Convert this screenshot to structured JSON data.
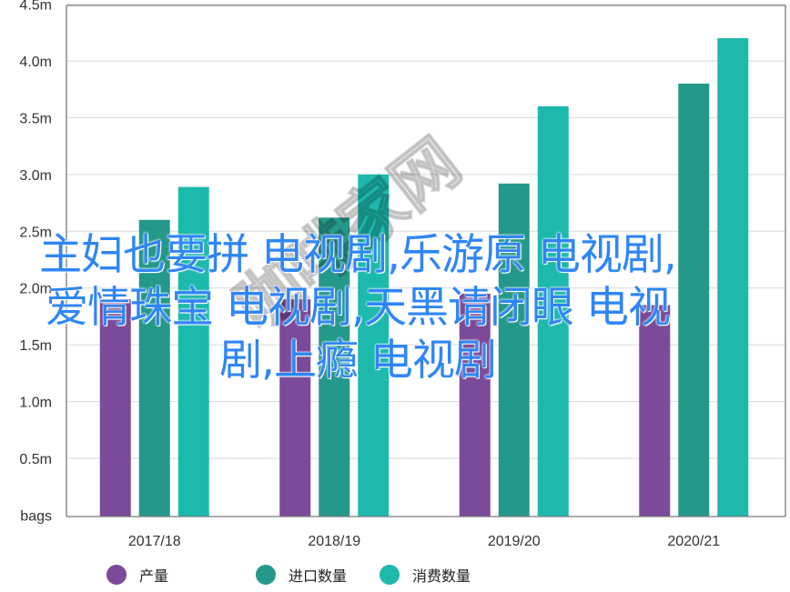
{
  "chart_data": {
    "type": "bar",
    "categories": [
      "2017/18",
      "2018/19",
      "2019/20",
      "2020/21"
    ],
    "series": [
      {
        "name": "产量",
        "color": "#7b4a98",
        "values": [
          1.9,
          1.9,
          1.95,
          1.85
        ]
      },
      {
        "name": "进口数量",
        "color": "#24998a",
        "values": [
          2.6,
          2.62,
          2.92,
          3.8
        ]
      },
      {
        "name": "消费数量",
        "color": "#1db9ac",
        "values": [
          2.89,
          3.0,
          3.6,
          4.2
        ]
      }
    ],
    "ylim": [
      0,
      4.5
    ],
    "y_ticks": [
      "bags",
      "0.5m",
      "1.0m",
      "1.5m",
      "2.0m",
      "2.5m",
      "3.0m",
      "3.5m",
      "4.0m",
      "4.5m"
    ],
    "ylabel": "",
    "xlabel": "",
    "title": "",
    "grid": true,
    "legend_position": "bottom"
  },
  "overlay": {
    "caption": "主妇也要拼 电视剧,乐游原 电视剧,爱情珠宝 电视剧,天黑请闭眼 电视剧,上瘾 电视剧",
    "watermark": "咖啡家网"
  }
}
